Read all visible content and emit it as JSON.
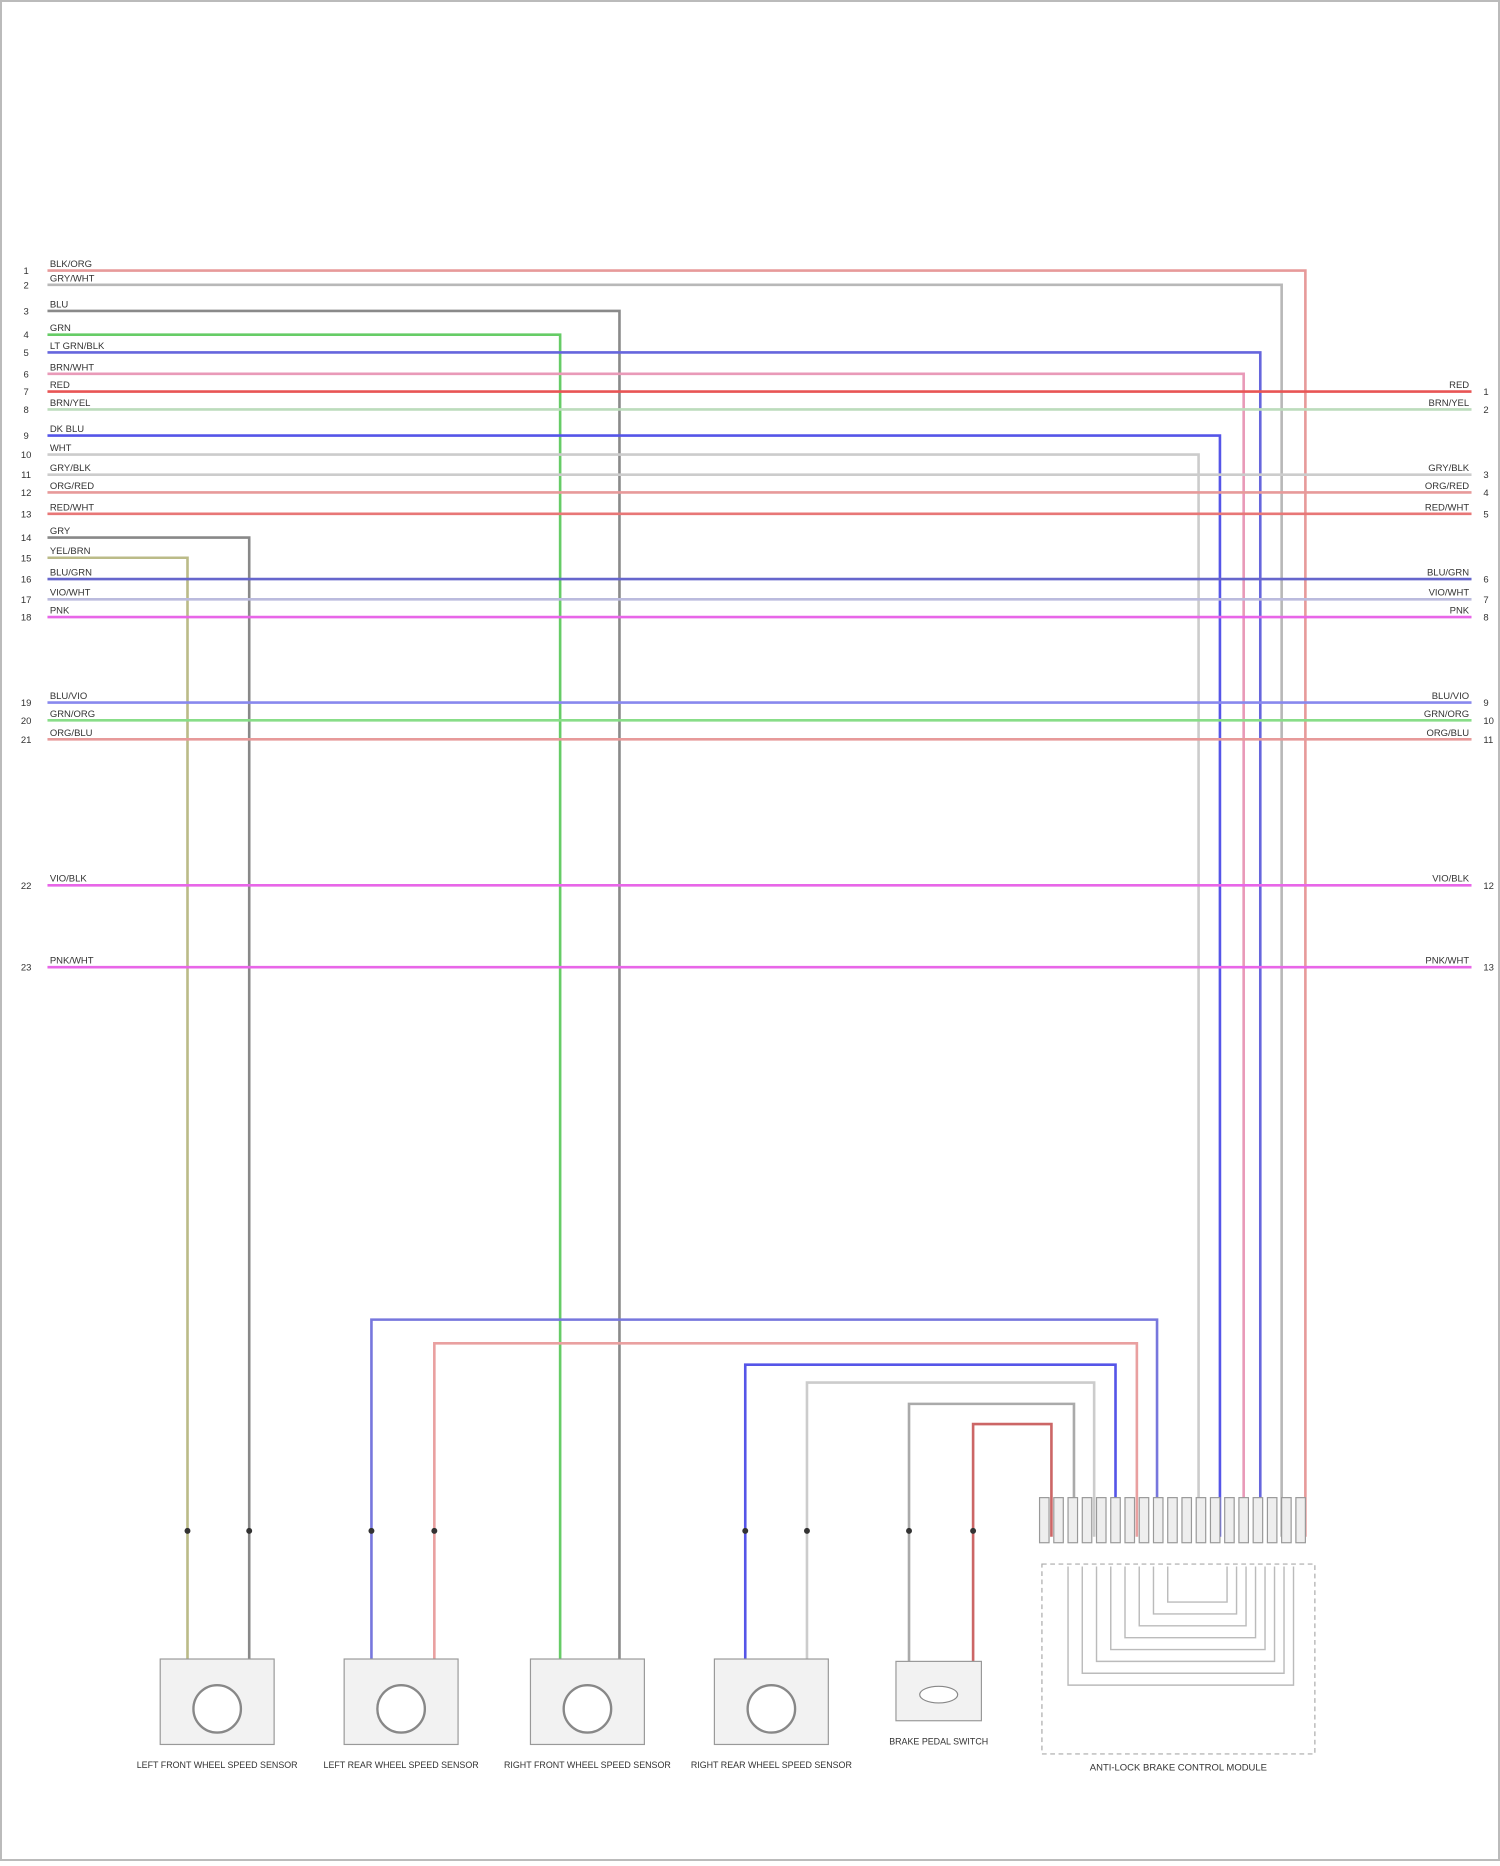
{
  "wires": [
    {
      "pin": "1",
      "label": "BLK/ORG",
      "color": "#e79a9a"
    },
    {
      "pin": "2",
      "label": "GRY/WHT",
      "color": "#b8b8b8"
    },
    {
      "pin": "3",
      "label": "BLU",
      "color": "#8a8a8a"
    },
    {
      "pin": "4",
      "label": "GRN",
      "color": "#66cc66"
    },
    {
      "pin": "5",
      "label": "LT GRN/BLK",
      "color": "#6666dd"
    },
    {
      "pin": "6",
      "label": "BRN/WHT",
      "color": "#e99ab8"
    },
    {
      "pin": "7",
      "label": "RED",
      "color": "#e85555",
      "right_pin": "1",
      "right_label": "RED"
    },
    {
      "pin": "8",
      "label": "BRN/YEL",
      "color": "#bcdcbc",
      "right_pin": "2",
      "right_label": "BRN/YEL"
    },
    {
      "pin": "9",
      "label": "DK BLU",
      "color": "#5555e8"
    },
    {
      "pin": "10",
      "label": "WHT",
      "color": "#cccccc"
    },
    {
      "pin": "11",
      "label": "GRY/BLK",
      "color": "#cccccc",
      "right_pin": "3",
      "right_label": "GRY/BLK"
    },
    {
      "pin": "12",
      "label": "ORG/RED",
      "color": "#e79a9a",
      "right_pin": "4",
      "right_label": "ORG/RED"
    },
    {
      "pin": "13",
      "label": "RED/WHT",
      "color": "#e87777",
      "right_pin": "5",
      "right_label": "RED/WHT"
    },
    {
      "pin": "14",
      "label": "GRY",
      "color": "#888888"
    },
    {
      "pin": "15",
      "label": "YEL/BRN",
      "color": "#bbbb88"
    },
    {
      "pin": "16",
      "label": "BLU/GRN",
      "color": "#6666cc",
      "right_pin": "6",
      "right_label": "BLU/GRN"
    },
    {
      "pin": "17",
      "label": "VIO/WHT",
      "color": "#bbbbdd",
      "right_pin": "7",
      "right_label": "VIO/WHT"
    },
    {
      "pin": "18",
      "label": "PNK",
      "color": "#e866e8",
      "right_pin": "8",
      "right_label": "PNK"
    },
    {
      "pin": "19",
      "label": "BLU/VIO",
      "color": "#8888ee",
      "right_pin": "9",
      "right_label": "BLU/VIO"
    },
    {
      "pin": "20",
      "label": "GRN/ORG",
      "color": "#88dd88",
      "right_pin": "10",
      "right_label": "GRN/ORG"
    },
    {
      "pin": "21",
      "label": "ORG/BLU",
      "color": "#e79a9a",
      "right_pin": "11",
      "right_label": "ORG/BLU"
    },
    {
      "pin": "22",
      "label": "VIO/BLK",
      "color": "#e866e8",
      "right_pin": "12",
      "right_label": "VIO/BLK"
    },
    {
      "pin": "23",
      "label": "PNK/WHT",
      "color": "#e866e8",
      "right_pin": "13",
      "right_label": "PNK/WHT"
    }
  ],
  "components": [
    {
      "name": "LEFT FRONT WHEEL SPEED SENSOR"
    },
    {
      "name": "LEFT REAR WHEEL SPEED SENSOR"
    },
    {
      "name": "RIGHT FRONT WHEEL SPEED SENSOR"
    },
    {
      "name": "RIGHT REAR WHEEL SPEED SENSOR"
    },
    {
      "name": "BRAKE PEDAL SWITCH"
    },
    {
      "name": "ANTI-LOCK BRAKE CONTROL MODULE"
    }
  ]
}
